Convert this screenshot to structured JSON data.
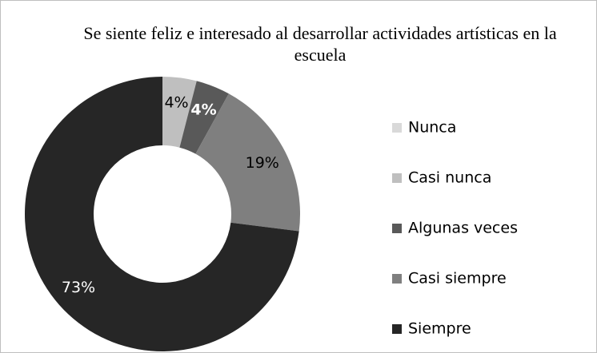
{
  "chart_data": {
    "type": "donut",
    "title": "Se siente feliz e interesado al desarrollar actividades artísticas en la escuela",
    "categories": [
      "Nunca",
      "Casi nunca",
      "Algunas veces",
      "Casi siempre",
      "Siempre"
    ],
    "values": [
      0,
      4,
      4,
      19,
      73
    ],
    "value_labels": [
      null,
      "4%",
      "4%",
      "19%",
      "73%"
    ],
    "colors": [
      "#d9d9d9",
      "#bfbfbf",
      "#595959",
      "#7f7f7f",
      "#262626"
    ],
    "legend": "right"
  }
}
